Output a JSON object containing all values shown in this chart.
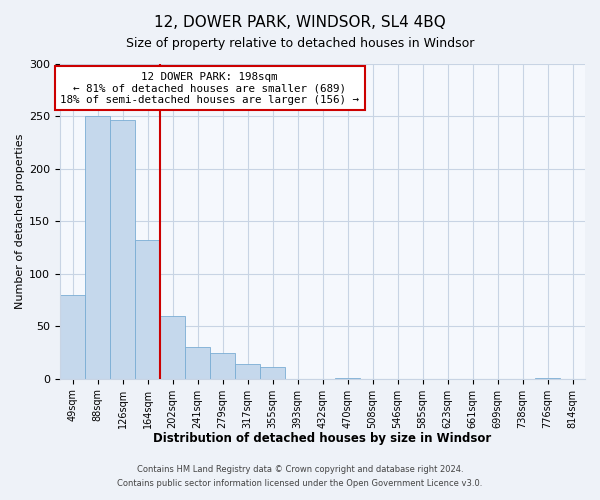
{
  "title": "12, DOWER PARK, WINDSOR, SL4 4BQ",
  "subtitle": "Size of property relative to detached houses in Windsor",
  "xlabel": "Distribution of detached houses by size in Windsor",
  "ylabel": "Number of detached properties",
  "bar_labels": [
    "49sqm",
    "88sqm",
    "126sqm",
    "164sqm",
    "202sqm",
    "241sqm",
    "279sqm",
    "317sqm",
    "355sqm",
    "393sqm",
    "432sqm",
    "470sqm",
    "508sqm",
    "546sqm",
    "585sqm",
    "623sqm",
    "661sqm",
    "699sqm",
    "738sqm",
    "776sqm",
    "814sqm"
  ],
  "bar_values": [
    80,
    250,
    247,
    132,
    60,
    30,
    25,
    14,
    11,
    0,
    0,
    1,
    0,
    0,
    0,
    0,
    0,
    0,
    0,
    1,
    0
  ],
  "bar_color": "#c5d8ec",
  "bar_edge_color": "#7aadd4",
  "property_label": "12 DOWER PARK: 198sqm",
  "annotation_line1": "← 81% of detached houses are smaller (689)",
  "annotation_line2": "18% of semi-detached houses are larger (156) →",
  "vline_color": "#cc0000",
  "vline_after_bin": 3,
  "ylim": [
    0,
    300
  ],
  "yticks": [
    0,
    50,
    100,
    150,
    200,
    250,
    300
  ],
  "footer1": "Contains HM Land Registry data © Crown copyright and database right 2024.",
  "footer2": "Contains public sector information licensed under the Open Government Licence v3.0.",
  "bg_color": "#eef2f8",
  "plot_bg_color": "#f5f8fd",
  "grid_color": "#c8d4e4"
}
